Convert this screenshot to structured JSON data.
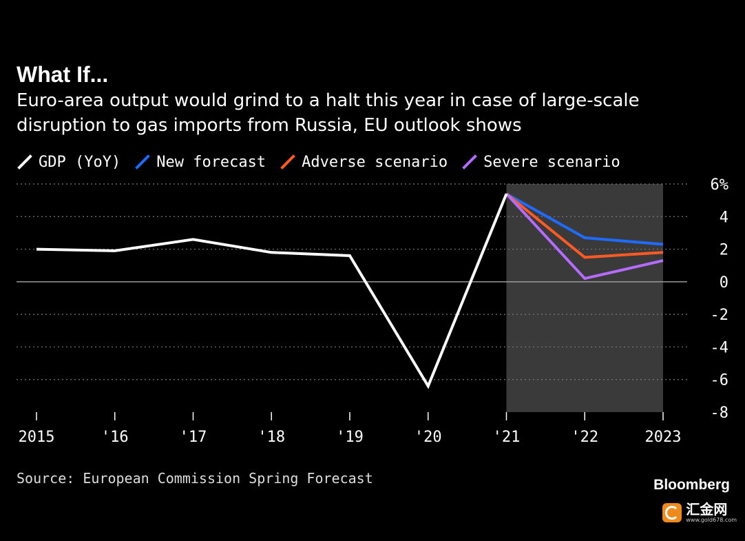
{
  "chart_data": {
    "type": "line",
    "title": "What If...",
    "subtitle": "Euro-area output would grind to a halt this year in case of large-scale disruption to gas imports from Russia, EU outlook shows",
    "x": [
      2015,
      2016,
      2017,
      2018,
      2019,
      2020,
      2021,
      2022,
      2023
    ],
    "x_tick_labels": [
      "2015",
      "'16",
      "'17",
      "'18",
      "'19",
      "'20",
      "'21",
      "'22",
      "2023"
    ],
    "y_ticks": [
      6,
      4,
      2,
      0,
      -2,
      -4,
      -6,
      -8
    ],
    "y_tick_labels": [
      "6%",
      "4",
      "2",
      "0",
      "-2",
      "-4",
      "-6",
      "-8"
    ],
    "ylim": [
      -8,
      6
    ],
    "grid": true,
    "legend_position": "top-left",
    "shaded_region": {
      "from": 2021,
      "to": 2023
    },
    "series": [
      {
        "name": "GDP (YoY)",
        "color": "#ffffff",
        "x": [
          2015,
          2016,
          2017,
          2018,
          2019,
          2020,
          2021
        ],
        "values": [
          2.0,
          1.9,
          2.6,
          1.8,
          1.6,
          -6.4,
          5.4
        ]
      },
      {
        "name": "New forecast",
        "color": "#1f6bff",
        "x": [
          2021,
          2022,
          2023
        ],
        "values": [
          5.4,
          2.7,
          2.3
        ]
      },
      {
        "name": "Adverse scenario",
        "color": "#ff5a23",
        "x": [
          2021,
          2022,
          2023
        ],
        "values": [
          5.4,
          1.5,
          1.8
        ]
      },
      {
        "name": "Severe scenario",
        "color": "#b56bff",
        "x": [
          2021,
          2022,
          2023
        ],
        "values": [
          5.4,
          0.2,
          1.3
        ]
      }
    ]
  },
  "footer": {
    "source": "Source: European Commission Spring Forecast",
    "brand": "Bloomberg"
  },
  "watermark": {
    "icon": "gold-coin-icon",
    "text": "汇金网",
    "url": "www.gold678.com"
  }
}
